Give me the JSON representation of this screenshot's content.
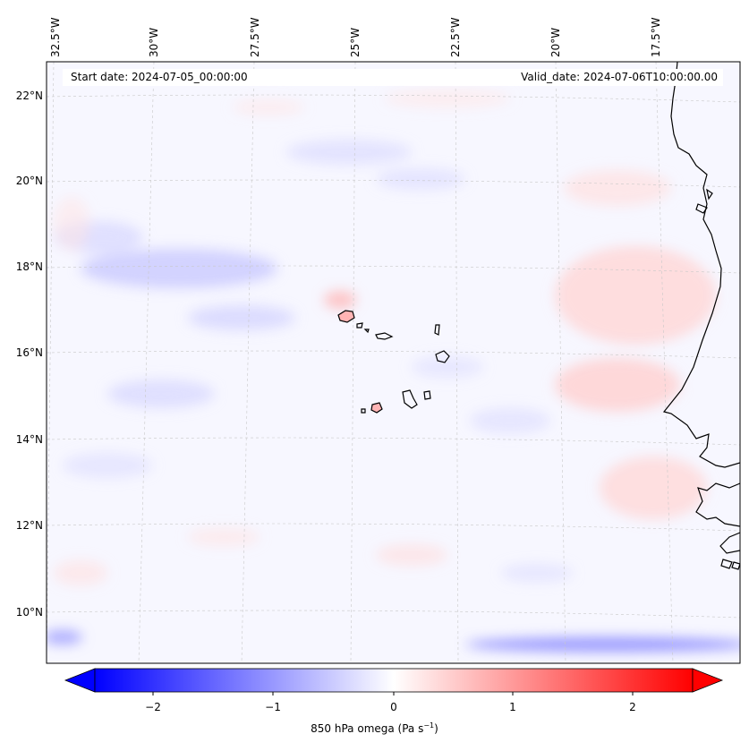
{
  "map": {
    "start_label": "Start date: 2024-07-05_00:00:00",
    "valid_label": "Valid_date: 2024-07-06T10:00:00.00",
    "variable_label": "850 hPa omega (Pa s",
    "variable_label_sup": "−1",
    "variable_label_end": ")",
    "lon_labels": [
      "32.5°W",
      "30°W",
      "27.5°W",
      "25°W",
      "22.5°W",
      "20°W",
      "17.5°W"
    ],
    "lat_labels": [
      "22°N",
      "20°N",
      "18°N",
      "16°N",
      "14°N",
      "12°N",
      "10°N"
    ],
    "colorbar": {
      "ticks": [
        "−2",
        "−1",
        "0",
        "1",
        "2"
      ],
      "range": [
        -2.5,
        2.5
      ],
      "cmap": "bwr",
      "color_low": "#0000ff",
      "color_mid": "#ffffff",
      "color_high": "#ff0000"
    },
    "coast_color": "#000000"
  }
}
